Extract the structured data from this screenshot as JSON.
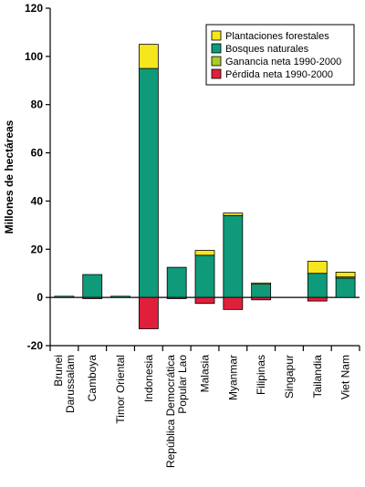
{
  "chart_data": {
    "type": "bar",
    "stacked": true,
    "ylabel": "Millones de hectáreas",
    "ylim": [
      -20,
      120
    ],
    "yticks": [
      -20,
      0,
      20,
      40,
      60,
      80,
      100,
      120
    ],
    "categories": [
      [
        "Brunei",
        "Darussalam"
      ],
      [
        "Camboya"
      ],
      [
        "Timor Oriental"
      ],
      [
        "Indonesia"
      ],
      [
        "República Democrática",
        "Popular Lao"
      ],
      [
        "Malasia"
      ],
      [
        "Myanmar"
      ],
      [
        "Filipinas"
      ],
      [
        "Singapur"
      ],
      [
        "Tailandia"
      ],
      [
        "Viet Nam"
      ]
    ],
    "legend_position": "top-right",
    "series": [
      {
        "name": "Plantaciones forestales",
        "color": "#f5e61e",
        "values": [
          0,
          0,
          0,
          10,
          0,
          2,
          1,
          0.5,
          0,
          5,
          2
        ]
      },
      {
        "name": "Bosques naturales",
        "color": "#0f9a7a",
        "values": [
          0.5,
          9.5,
          0.5,
          95,
          12.5,
          17.5,
          34,
          5.5,
          0,
          10,
          8
        ]
      },
      {
        "name": "Ganancia neta 1990-2000",
        "color": "#a8cc2a",
        "values": [
          0,
          0,
          0,
          0,
          0,
          0,
          0,
          0,
          0,
          0,
          0.5
        ]
      },
      {
        "name": "Pérdida neta  1990-2000",
        "color": "#e0203a",
        "values": [
          0,
          -0.5,
          0,
          -13,
          -0.5,
          -2.5,
          -5,
          -1,
          0,
          -1.5,
          0
        ]
      }
    ]
  }
}
